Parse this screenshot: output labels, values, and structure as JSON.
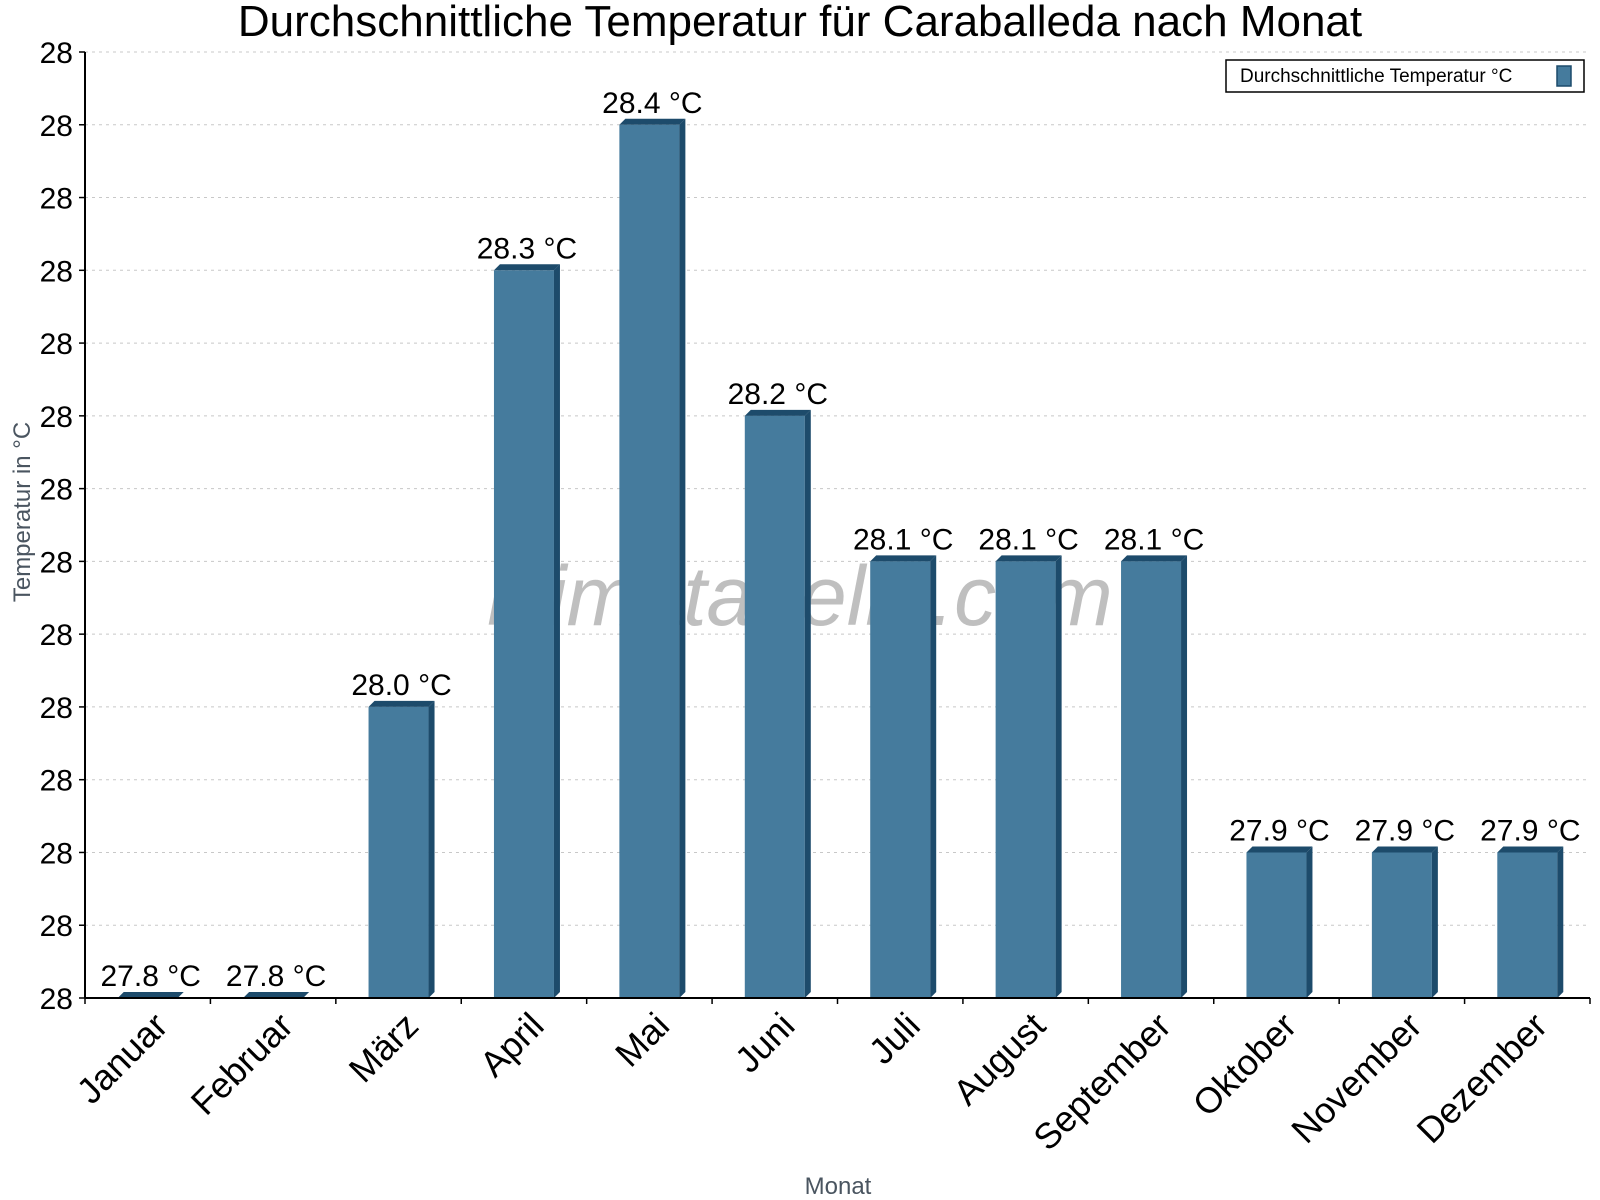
{
  "chart_data": {
    "type": "bar",
    "title": "Durchschnittliche Temperatur für Caraballeda nach Monat",
    "xlabel": "Monat",
    "ylabel": "Temperatur in °C",
    "categories": [
      "Januar",
      "Februar",
      "März",
      "April",
      "Mai",
      "Juni",
      "Juli",
      "August",
      "September",
      "Oktober",
      "November",
      "Dezember"
    ],
    "series": [
      {
        "name": "Durchschnittliche Temperatur °C",
        "values": [
          27.8,
          27.8,
          28.0,
          28.3,
          28.4,
          28.2,
          28.1,
          28.1,
          28.1,
          27.9,
          27.9,
          27.9
        ],
        "labels": [
          "27.8 °C",
          "27.8 °C",
          "28.0 °C",
          "28.3 °C",
          "28.4 °C",
          "28.2 °C",
          "28.1 °C",
          "28.1 °C",
          "28.1 °C",
          "27.9 °C",
          "27.9 °C",
          "27.9 °C"
        ]
      }
    ],
    "ylim": [
      27.8,
      28.45
    ],
    "ytick_values": [
      27.8,
      27.85,
      27.9,
      27.95,
      28.0,
      28.05,
      28.1,
      28.15,
      28.2,
      28.25,
      28.3,
      28.35,
      28.4,
      28.45
    ],
    "ytick_labels": [
      "28",
      "28",
      "28",
      "28",
      "28",
      "28",
      "28",
      "28",
      "28",
      "28",
      "28",
      "28",
      "28",
      "28"
    ],
    "grid": true,
    "legend_position": "top-right",
    "watermark": "klimatabelle.com",
    "colors": {
      "bar_face": "#457b9d",
      "bar_side": "#1d4b6b",
      "grid": "#c8c8c8",
      "axis": "#000000"
    }
  }
}
